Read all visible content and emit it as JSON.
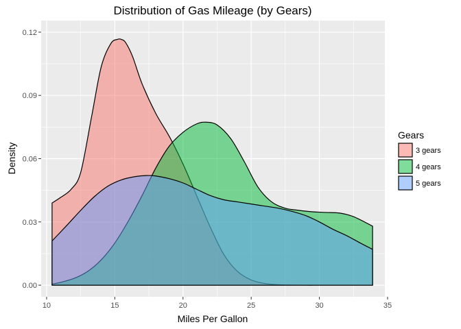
{
  "chart_data": {
    "type": "area",
    "title": "Distribution of Gas Mileage (by Gears)",
    "xlabel": "Miles Per Gallon",
    "ylabel": "Density",
    "xlim": [
      9.6,
      34.8
    ],
    "ylim": [
      -0.0055,
      0.1255
    ],
    "x_ticks": [
      10,
      15,
      20,
      25,
      30,
      35
    ],
    "y_ticks": [
      0.0,
      0.03,
      0.06,
      0.09,
      0.12
    ],
    "x_tick_labels": [
      "10",
      "15",
      "20",
      "25",
      "30",
      "35"
    ],
    "y_tick_labels": [
      "0.00",
      "0.03",
      "0.06",
      "0.09",
      "0.12"
    ],
    "grid": true,
    "legend": {
      "title": "Gears",
      "position": "right"
    },
    "series": [
      {
        "name": "3 gears",
        "color": "#F8766D",
        "x": [
          10.4,
          11.0,
          11.8,
          12.5,
          13.3,
          14.0,
          14.7,
          15.2,
          15.5,
          15.8,
          16.3,
          17.0,
          18.0,
          19.0,
          20.0,
          21.0,
          22.0,
          23.0,
          24.0,
          25.0,
          26.0,
          27.0,
          28.0,
          29.0,
          30.0,
          31.0,
          32.0,
          33.0,
          33.9
        ],
        "y": [
          0.039,
          0.0415,
          0.0455,
          0.0535,
          0.08,
          0.1035,
          0.1145,
          0.1166,
          0.1165,
          0.115,
          0.1085,
          0.0955,
          0.0815,
          0.0705,
          0.0575,
          0.0425,
          0.0275,
          0.0145,
          0.0065,
          0.0025,
          0.0008,
          0.0002,
          5e-05,
          0.0,
          0.0,
          0.0,
          0.0,
          0.0,
          0.0
        ]
      },
      {
        "name": "4 gears",
        "color": "#00BA38",
        "x": [
          10.4,
          11.0,
          12.0,
          13.0,
          14.0,
          15.0,
          16.0,
          17.0,
          18.0,
          19.0,
          20.0,
          21.0,
          21.7,
          22.5,
          23.5,
          24.5,
          25.5,
          26.5,
          27.5,
          28.5,
          29.5,
          30.5,
          31.5,
          32.5,
          33.9
        ],
        "y": [
          0.0005,
          0.0013,
          0.0032,
          0.0065,
          0.012,
          0.02,
          0.0305,
          0.0425,
          0.0555,
          0.066,
          0.0725,
          0.0765,
          0.0773,
          0.076,
          0.0695,
          0.0585,
          0.0465,
          0.0395,
          0.0365,
          0.0355,
          0.0348,
          0.0345,
          0.0342,
          0.0325,
          0.028
        ]
      },
      {
        "name": "5 gears",
        "color": "#619CFF",
        "x": [
          10.4,
          11.5,
          12.5,
          13.5,
          14.5,
          15.5,
          16.5,
          17.3,
          18.0,
          19.0,
          20.0,
          21.0,
          22.0,
          23.0,
          24.0,
          25.0,
          26.0,
          27.0,
          28.0,
          29.0,
          30.0,
          31.0,
          32.0,
          33.0,
          33.9
        ],
        "y": [
          0.021,
          0.0285,
          0.0355,
          0.042,
          0.047,
          0.05,
          0.0515,
          0.052,
          0.0518,
          0.0505,
          0.0485,
          0.0455,
          0.0425,
          0.0405,
          0.0395,
          0.0385,
          0.0375,
          0.0365,
          0.035,
          0.033,
          0.03,
          0.0265,
          0.0235,
          0.02,
          0.017
        ]
      }
    ]
  }
}
